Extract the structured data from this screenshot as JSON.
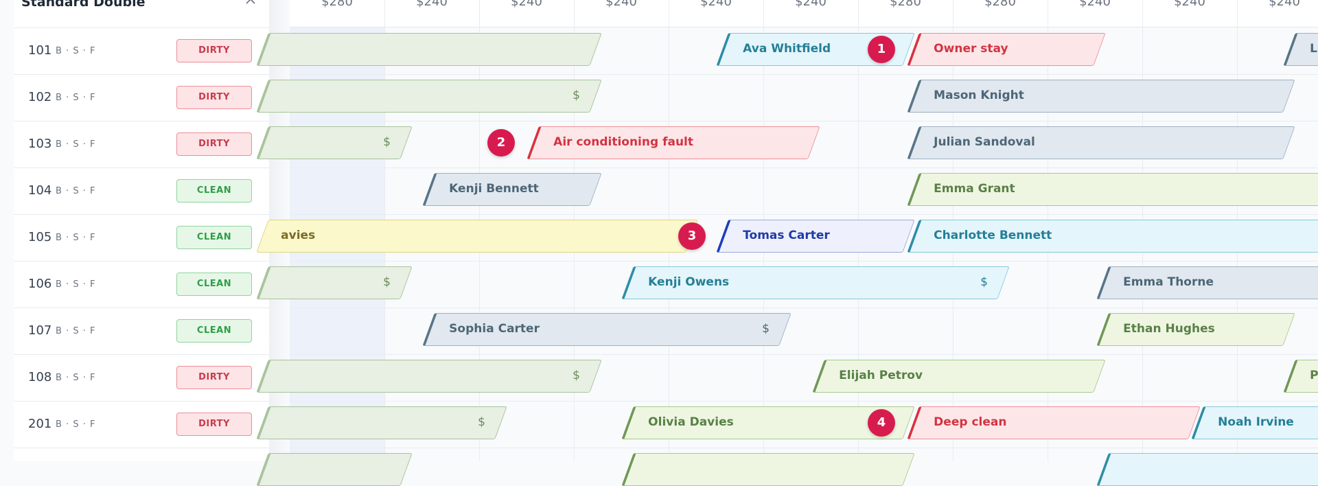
{
  "group": {
    "title": "Standard Double"
  },
  "prices": [
    "$280",
    "$240",
    "$240",
    "$240",
    "$240",
    "$240",
    "$280",
    "$280",
    "$240",
    "$240",
    "$240"
  ],
  "rooms": [
    {
      "number": "101",
      "beds": "B · S · F",
      "status": "DIRTY"
    },
    {
      "number": "102",
      "beds": "B · S · F",
      "status": "DIRTY"
    },
    {
      "number": "103",
      "beds": "B · S · F",
      "status": "DIRTY"
    },
    {
      "number": "104",
      "beds": "B · S · F",
      "status": "CLEAN"
    },
    {
      "number": "105",
      "beds": "B · S · F",
      "status": "CLEAN"
    },
    {
      "number": "106",
      "beds": "B · S · F",
      "status": "CLEAN"
    },
    {
      "number": "107",
      "beds": "B · S · F",
      "status": "CLEAN"
    },
    {
      "number": "108",
      "beds": "B · S · F",
      "status": "DIRTY"
    },
    {
      "number": "201",
      "beds": "B · S · F",
      "status": "DIRTY"
    }
  ],
  "bookings": {
    "r101_a": {
      "label": ""
    },
    "r101_b": {
      "label": "Ava Whitfield"
    },
    "r101_c": {
      "label": "Owner stay"
    },
    "r101_d": {
      "label": "Lu"
    },
    "r102_a": {
      "label": "",
      "dollar": "$"
    },
    "r102_b": {
      "label": "Mason Knight"
    },
    "r103_a": {
      "label": "",
      "dollar": "$"
    },
    "r103_b": {
      "label": "Air conditioning fault"
    },
    "r103_c": {
      "label": "Julian Sandoval"
    },
    "r104_a": {
      "label": "Kenji Bennett"
    },
    "r104_b": {
      "label": "Emma Grant"
    },
    "r105_a": {
      "label": "avies"
    },
    "r105_b": {
      "label": "Tomas Carter"
    },
    "r105_c": {
      "label": "Charlotte Bennett"
    },
    "r106_a": {
      "label": "",
      "dollar": "$"
    },
    "r106_b": {
      "label": "Kenji Owens",
      "dollar": "$"
    },
    "r106_c": {
      "label": "Emma Thorne"
    },
    "r107_a": {
      "label": "Sophia Carter",
      "dollar": "$"
    },
    "r107_b": {
      "label": "Ethan Hughes"
    },
    "r108_a": {
      "label": "",
      "dollar": "$"
    },
    "r108_b": {
      "label": "Elijah Petrov"
    },
    "r108_c": {
      "label": "Pri"
    },
    "r201_a": {
      "label": "",
      "dollar": "$"
    },
    "r201_b": {
      "label": "Olivia Davies"
    },
    "r201_c": {
      "label": "Deep clean"
    },
    "r201_d": {
      "label": "Noah Irvine"
    }
  },
  "badges": [
    "1",
    "2",
    "3",
    "4"
  ],
  "colors": {
    "badge": "#d81b4f",
    "dirty": "#c73b4d",
    "clean": "#2e9f45",
    "maintenance": "#d23442",
    "selected": "#1f3aa6"
  },
  "icons": {
    "collapse": "chevron-up-icon"
  }
}
